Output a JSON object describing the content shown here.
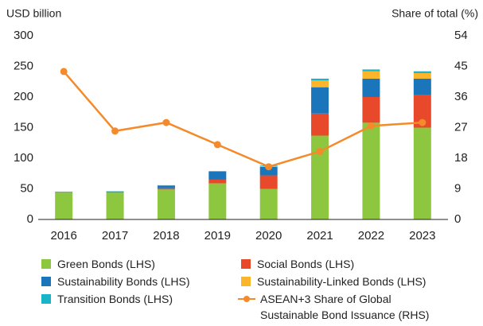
{
  "chart_data": {
    "type": "bar",
    "stacked": true,
    "y_label": "USD billion",
    "y2_label": "Share of total (%)",
    "categories": [
      "2016",
      "2017",
      "2018",
      "2019",
      "2020",
      "2021",
      "2022",
      "2023"
    ],
    "series": [
      {
        "name": "Green Bonds (LHS)",
        "color": "#8dc63f",
        "values": [
          44,
          44,
          49,
          59,
          50,
          137,
          158,
          150
        ]
      },
      {
        "name": "Social Bonds (LHS)",
        "color": "#e8492a",
        "values": [
          0,
          0,
          2,
          6,
          22,
          36,
          42,
          53
        ]
      },
      {
        "name": "Sustainability Bonds (LHS)",
        "color": "#1a75bb",
        "values": [
          1,
          1,
          4,
          13,
          14,
          43,
          30,
          27
        ]
      },
      {
        "name": "Sustainability-Linked Bonds (LHS)",
        "color": "#fbb52b",
        "values": [
          0,
          0,
          0,
          0,
          1,
          11,
          12,
          9
        ]
      },
      {
        "name": "Transition Bonds (LHS)",
        "color": "#18b5c9",
        "values": [
          0,
          1,
          1,
          1,
          1,
          3,
          3,
          3
        ]
      },
      {
        "name": "ASEAN+3 Share of Global Sustainable Bond Issuance (RHS)",
        "color": "#f58a2a",
        "type": "line",
        "axis": "y2",
        "values": [
          43.5,
          26,
          28.5,
          22,
          15.5,
          20,
          27.5,
          28.5
        ]
      }
    ],
    "ylim": [
      0,
      300
    ],
    "yticks": [
      0,
      50,
      100,
      150,
      200,
      250,
      300
    ],
    "y2lim": [
      0,
      54
    ],
    "y2ticks": [
      0,
      9,
      18,
      27,
      36,
      45,
      54
    ],
    "grid": false
  }
}
